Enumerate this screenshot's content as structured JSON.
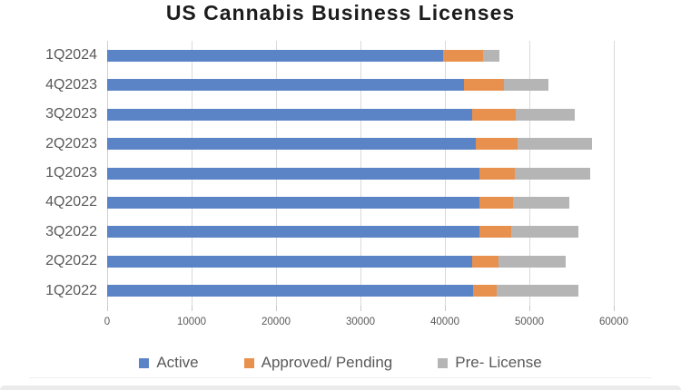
{
  "title": "US Cannabis Business Licenses",
  "colors": {
    "active": "#5b84c6",
    "approved_pending": "#e8914e",
    "pre_license": "#b5b5b5",
    "gridline": "#d9d9d9",
    "axis_text": "#595959",
    "title_text": "#1c1c1c"
  },
  "chart_data": {
    "type": "bar",
    "orientation": "horizontal",
    "stacked": true,
    "title": "US Cannabis Business Licenses",
    "categories": [
      "1Q2024",
      "4Q2023",
      "3Q2023",
      "2Q2023",
      "1Q2023",
      "4Q2022",
      "3Q2022",
      "2Q2022",
      "1Q2022"
    ],
    "series": [
      {
        "name": "Active",
        "color": "#5b84c6",
        "values": [
          39800,
          42300,
          43200,
          43700,
          44100,
          44100,
          44100,
          43200,
          43300
        ]
      },
      {
        "name": "Approved/ Pending",
        "color": "#e8914e",
        "values": [
          4700,
          4700,
          5200,
          4900,
          4200,
          4000,
          3700,
          3100,
          2800
        ]
      },
      {
        "name": "Pre- License",
        "color": "#b5b5b5",
        "values": [
          2000,
          5300,
          7000,
          8800,
          8900,
          6600,
          8000,
          8000,
          9700
        ]
      }
    ],
    "totals": [
      46500,
      52300,
      55400,
      57400,
      57200,
      54700,
      55800,
      54300,
      55800
    ],
    "x_axis": {
      "min": 0,
      "max": 60000,
      "tick_interval": 10000,
      "tick_labels": [
        "0",
        "10000",
        "20000",
        "30000",
        "40000",
        "50000",
        "60000"
      ]
    },
    "y_axis_labels": [
      "1Q2024",
      "4Q2023",
      "3Q2023",
      "2Q2023",
      "1Q2023",
      "4Q2022",
      "3Q2022",
      "2Q2022",
      "1Q2022"
    ],
    "grid": true,
    "legend_position": "bottom"
  },
  "legend": {
    "items": [
      {
        "label": "Active",
        "color": "#5b84c6"
      },
      {
        "label": "Approved/ Pending",
        "color": "#e8914e"
      },
      {
        "label": "Pre- License",
        "color": "#b5b5b5"
      }
    ]
  }
}
